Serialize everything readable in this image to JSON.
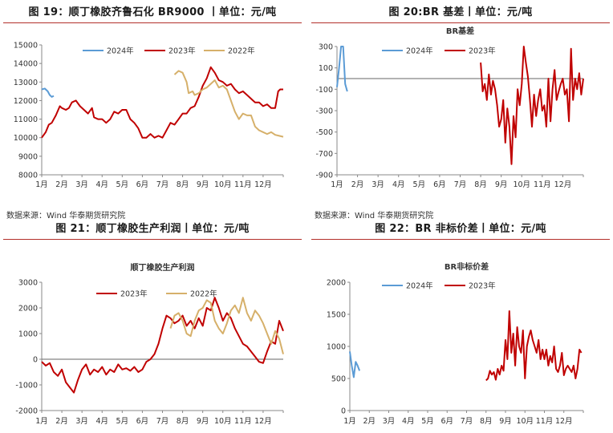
{
  "panels": [
    {
      "title": "图 19：顺丁橡胶齐鲁石化 BR9000 丨单位：元/吨",
      "source": "数据来源：Wind 华泰期货研究院",
      "chart_data": {
        "type": "line",
        "title": "",
        "xlabel": "",
        "ylabel": "",
        "ylim": [
          8000,
          15000
        ],
        "yticks": [
          8000,
          9000,
          10000,
          11000,
          12000,
          13000,
          14000,
          15000
        ],
        "xlim": [
          0,
          12
        ],
        "x_tick_labels": [
          "1月",
          "2月",
          "3月",
          "4月",
          "5月",
          "6月",
          "7月",
          "8月",
          "9月",
          "10月",
          "11月",
          "12月"
        ],
        "grid": false,
        "legend": "top",
        "series": [
          {
            "name": "2024年",
            "color": "#5b9bd5",
            "width": 2,
            "x": [
              0.0,
              0.15,
              0.3,
              0.4,
              0.5,
              0.6
            ],
            "y": [
              12600,
              12650,
              12500,
              12300,
              12200,
              12250
            ]
          },
          {
            "name": "2023年",
            "color": "#c00000",
            "width": 2,
            "x": [
              0.0,
              0.2,
              0.35,
              0.5,
              0.7,
              0.9,
              1.0,
              1.2,
              1.35,
              1.5,
              1.7,
              1.9,
              2.1,
              2.3,
              2.5,
              2.6,
              2.8,
              3.0,
              3.2,
              3.4,
              3.6,
              3.8,
              4.0,
              4.2,
              4.4,
              4.6,
              4.8,
              5.0,
              5.2,
              5.4,
              5.6,
              5.8,
              6.0,
              6.2,
              6.4,
              6.6,
              6.8,
              7.0,
              7.2,
              7.4,
              7.6,
              7.8,
              8.0,
              8.2,
              8.4,
              8.6,
              8.8,
              9.0,
              9.2,
              9.4,
              9.6,
              9.8,
              10.0,
              10.2,
              10.4,
              10.6,
              10.8,
              11.0,
              11.2,
              11.4,
              11.6,
              11.75,
              11.85,
              12.0
            ],
            "y": [
              10000,
              10300,
              10700,
              10800,
              11200,
              11700,
              11600,
              11500,
              11600,
              11900,
              12000,
              11700,
              11500,
              11300,
              11600,
              11100,
              11000,
              11000,
              10800,
              11000,
              11400,
              11300,
              11500,
              11500,
              11000,
              10800,
              10500,
              10000,
              10000,
              10200,
              10000,
              10100,
              10000,
              10400,
              10800,
              10700,
              11000,
              11300,
              11300,
              11600,
              11700,
              12200,
              12800,
              13200,
              13800,
              13500,
              13100,
              13000,
              12800,
              12900,
              12600,
              12400,
              12500,
              12300,
              12100,
              11900,
              11900,
              11700,
              11800,
              11600,
              11600,
              12500,
              12600,
              12600
            ]
          },
          {
            "name": "2022年",
            "color": "#d6b06a",
            "width": 2,
            "x": [
              6.6,
              6.8,
              7.0,
              7.2,
              7.3,
              7.5,
              7.6,
              7.8,
              8.0,
              8.2,
              8.4,
              8.6,
              8.8,
              9.0,
              9.2,
              9.4,
              9.6,
              9.8,
              10.0,
              10.2,
              10.4,
              10.6,
              10.8,
              11.0,
              11.2,
              11.4,
              11.6,
              11.8,
              12.0
            ],
            "y": [
              13400,
              13600,
              13500,
              13000,
              12400,
              12500,
              12300,
              12400,
              12600,
              12700,
              12900,
              13100,
              12700,
              12800,
              12600,
              12000,
              11400,
              11000,
              11300,
              11200,
              11200,
              10600,
              10400,
              10300,
              10200,
              10300,
              10150,
              10100,
              10050
            ]
          }
        ]
      }
    },
    {
      "title": "图 20:BR 基差丨单位：元/吨",
      "source": "数据来源：Wind 华泰期货研究院",
      "chart_data": {
        "type": "line",
        "title": "BR基差",
        "xlabel": "",
        "ylabel": "",
        "ylim": [
          -900,
          300
        ],
        "yticks": [
          -900,
          -700,
          -500,
          -300,
          -100,
          100,
          300
        ],
        "ytick_labels": [
          "-900",
          "-700",
          "-500",
          "-300",
          "-100",
          "100",
          "300"
        ],
        "xlim": [
          0,
          12
        ],
        "x_tick_labels": [
          "1月",
          "2月",
          "3月",
          "4月",
          "5月",
          "6月",
          "7月",
          "8月",
          "9月",
          "10月",
          "11月",
          "12月"
        ],
        "zero_line": true,
        "grid": false,
        "legend": "top",
        "series": [
          {
            "name": "2024年",
            "color": "#5b9bd5",
            "width": 2,
            "x": [
              0.0,
              0.1,
              0.2,
              0.3,
              0.4,
              0.5
            ],
            "y": [
              -80,
              100,
              300,
              300,
              -50,
              -120
            ]
          },
          {
            "name": "2023年",
            "color": "#c00000",
            "width": 2,
            "x": [
              7.0,
              7.1,
              7.2,
              7.3,
              7.4,
              7.5,
              7.6,
              7.7,
              7.8,
              7.9,
              8.0,
              8.1,
              8.2,
              8.3,
              8.4,
              8.5,
              8.6,
              8.7,
              8.8,
              8.9,
              9.0,
              9.1,
              9.2,
              9.3,
              9.4,
              9.5,
              9.6,
              9.7,
              9.8,
              9.9,
              10.0,
              10.1,
              10.2,
              10.3,
              10.4,
              10.5,
              10.6,
              10.7,
              10.8,
              10.9,
              11.0,
              11.1,
              11.2,
              11.3,
              11.4,
              11.5,
              11.6,
              11.7,
              11.8,
              11.9,
              12.0
            ],
            "y": [
              150,
              -120,
              -50,
              -200,
              40,
              -150,
              -20,
              -100,
              -250,
              -450,
              -380,
              -200,
              -600,
              -280,
              -450,
              -800,
              -350,
              -550,
              -100,
              -250,
              -50,
              300,
              150,
              20,
              -200,
              -450,
              -150,
              -350,
              -200,
              -100,
              -300,
              -250,
              -450,
              0,
              -400,
              -100,
              80,
              -200,
              -120,
              -50,
              0,
              -150,
              -100,
              -400,
              280,
              -200,
              0,
              -100,
              50,
              -150,
              0
            ]
          }
        ]
      }
    },
    {
      "title": "图 21：顺丁橡胶生产利润丨单位：元/吨",
      "source": "",
      "chart_data": {
        "type": "line",
        "title": "顺丁橡胶生产利润",
        "xlabel": "",
        "ylabel": "",
        "ylim": [
          -2000,
          3000
        ],
        "yticks": [
          -2000,
          -1000,
          0,
          1000,
          2000,
          3000
        ],
        "xlim": [
          0,
          12
        ],
        "x_tick_labels": [
          "1月",
          "2月",
          "3月",
          "4月",
          "5月",
          "6月",
          "7月",
          "8月",
          "9月",
          "10月",
          "11月",
          "12月"
        ],
        "zero_line": true,
        "grid": false,
        "legend": "top",
        "series": [
          {
            "name": "2023年",
            "color": "#c00000",
            "width": 2,
            "x": [
              0.0,
              0.2,
              0.4,
              0.6,
              0.8,
              1.0,
              1.2,
              1.4,
              1.6,
              1.8,
              2.0,
              2.2,
              2.4,
              2.6,
              2.8,
              3.0,
              3.2,
              3.4,
              3.6,
              3.8,
              4.0,
              4.2,
              4.4,
              4.6,
              4.8,
              5.0,
              5.2,
              5.4,
              5.6,
              5.8,
              6.0,
              6.2,
              6.4,
              6.6,
              6.8,
              7.0,
              7.2,
              7.4,
              7.6,
              7.8,
              8.0,
              8.2,
              8.4,
              8.6,
              8.8,
              9.0,
              9.2,
              9.4,
              9.6,
              9.8,
              10.0,
              10.2,
              10.4,
              10.6,
              10.8,
              11.0,
              11.2,
              11.4,
              11.6,
              11.8,
              12.0
            ],
            "y": [
              -100,
              -250,
              -150,
              -500,
              -650,
              -400,
              -900,
              -1100,
              -1300,
              -800,
              -400,
              -200,
              -600,
              -400,
              -500,
              -300,
              -600,
              -400,
              -500,
              -200,
              -400,
              -350,
              -450,
              -300,
              -500,
              -400,
              -100,
              0,
              200,
              600,
              1200,
              1700,
              1600,
              1400,
              1500,
              1700,
              1300,
              1500,
              1200,
              1600,
              1300,
              2000,
              1900,
              2400,
              2000,
              1500,
              1800,
              1600,
              1200,
              900,
              600,
              500,
              300,
              100,
              -100,
              -150,
              300,
              700,
              600,
              1500,
              1100
            ]
          },
          {
            "name": "2022年",
            "color": "#d6b06a",
            "width": 2,
            "x": [
              6.4,
              6.6,
              6.8,
              7.0,
              7.2,
              7.4,
              7.6,
              7.8,
              8.0,
              8.2,
              8.4,
              8.6,
              8.8,
              9.0,
              9.2,
              9.4,
              9.6,
              9.8,
              10.0,
              10.2,
              10.4,
              10.6,
              10.8,
              11.0,
              11.2,
              11.4,
              11.6,
              11.8,
              12.0
            ],
            "y": [
              1200,
              1700,
              1800,
              1500,
              1000,
              900,
              1500,
              1900,
              2000,
              2300,
              2200,
              1500,
              1200,
              1000,
              1400,
              1900,
              2100,
              1800,
              2400,
              1800,
              1500,
              1900,
              1700,
              1400,
              1000,
              600,
              1100,
              800,
              200
            ]
          }
        ]
      }
    },
    {
      "title": "图 22：BR 非标价差丨单位：元/吨",
      "source": "",
      "chart_data": {
        "type": "line",
        "title": "BR非标价差",
        "xlabel": "",
        "ylabel": "",
        "ylim": [
          0,
          2000
        ],
        "yticks": [
          0,
          500,
          1000,
          1500,
          2000
        ],
        "xlim": [
          0,
          12
        ],
        "x_tick_labels": [
          "1月",
          "2月",
          "3月",
          "4月",
          "5月",
          "6月",
          "7月",
          "8月",
          "9月",
          "10月",
          "11月",
          "12月"
        ],
        "grid": false,
        "legend": "top",
        "series": [
          {
            "name": "2024年",
            "color": "#5b9bd5",
            "width": 2,
            "x": [
              0.0,
              0.1,
              0.2,
              0.3,
              0.4,
              0.5
            ],
            "y": [
              920,
              700,
              520,
              760,
              700,
              620
            ]
          },
          {
            "name": "2023年",
            "color": "#c00000",
            "width": 2,
            "x": [
              7.0,
              7.1,
              7.2,
              7.3,
              7.4,
              7.5,
              7.6,
              7.7,
              7.8,
              7.9,
              8.0,
              8.1,
              8.2,
              8.3,
              8.4,
              8.5,
              8.6,
              8.7,
              8.8,
              8.9,
              9.0,
              9.1,
              9.2,
              9.3,
              9.4,
              9.5,
              9.6,
              9.7,
              9.8,
              9.9,
              10.0,
              10.1,
              10.2,
              10.3,
              10.4,
              10.5,
              10.6,
              10.7,
              10.8,
              10.9,
              11.0,
              11.1,
              11.2,
              11.3,
              11.4,
              11.5,
              11.6,
              11.7,
              11.8,
              11.9
            ],
            "y": [
              470,
              500,
              620,
              560,
              600,
              480,
              650,
              560,
              700,
              620,
              1100,
              800,
              1550,
              900,
              1200,
              700,
              1300,
              1000,
              900,
              1250,
              500,
              1000,
              1150,
              1250,
              1100,
              1000,
              900,
              1100,
              800,
              950,
              800,
              950,
              700,
              850,
              750,
              1000,
              650,
              600,
              700,
              900,
              550,
              650,
              700,
              650,
              600,
              700,
              500,
              650,
              950,
              900
            ]
          }
        ]
      }
    }
  ]
}
